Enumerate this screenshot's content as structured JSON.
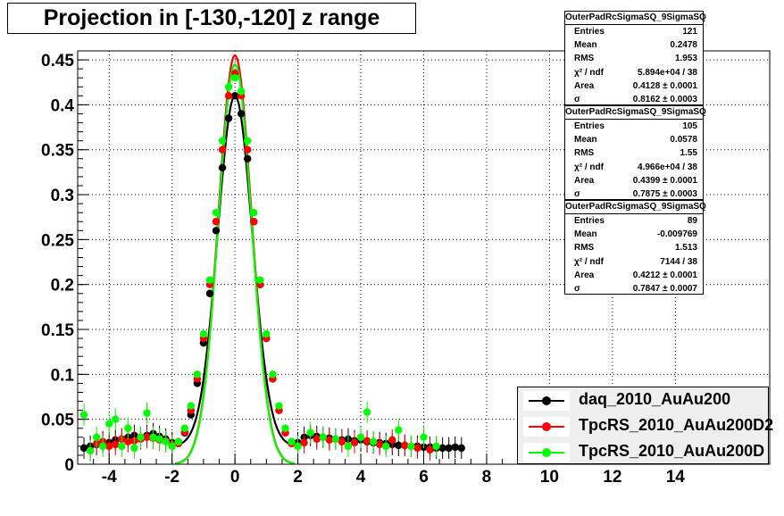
{
  "title": "Projection in [-130,-120] z range",
  "stat_boxes": [
    {
      "name": "OuterPadRcSigmaSQ_9SigmaSQ",
      "rows": [
        {
          "label": "Entries",
          "value": "121"
        },
        {
          "label": "Mean",
          "value": "0.2478"
        },
        {
          "label": "RMS",
          "value": "1.953"
        },
        {
          "label": "χ² / ndf",
          "value": "5.894e+04 / 38"
        },
        {
          "label": "Area",
          "value": "0.4128 ± 0.0001"
        },
        {
          "label": "σ",
          "value": "0.8162 ± 0.0003"
        }
      ]
    },
    {
      "name": "OuterPadRcSigmaSQ_9SigmaSQ",
      "rows": [
        {
          "label": "Entries",
          "value": "105"
        },
        {
          "label": "Mean",
          "value": "0.0578"
        },
        {
          "label": "RMS",
          "value": "1.55"
        },
        {
          "label": "χ² / ndf",
          "value": "4.966e+04 / 38"
        },
        {
          "label": "Area",
          "value": "0.4399 ± 0.0001"
        },
        {
          "label": "σ",
          "value": "0.7875 ± 0.0003"
        }
      ]
    },
    {
      "name": "OuterPadRcSigmaSQ_9SigmaSQ",
      "rows": [
        {
          "label": "Entries",
          "value": "89"
        },
        {
          "label": "Mean",
          "value": "-0.009769"
        },
        {
          "label": "RMS",
          "value": "1.513"
        },
        {
          "label": "χ² / ndf",
          "value": "7144 / 38"
        },
        {
          "label": "Area",
          "value": "0.4212 ± 0.0001"
        },
        {
          "label": "σ",
          "value": "0.7847 ± 0.0007"
        }
      ]
    }
  ],
  "legend": {
    "items": [
      {
        "label": "daq_2010_AuAu200",
        "color": "#000000"
      },
      {
        "label": "TpcRS_2010_AuAu200D2",
        "color": "#ff0000"
      },
      {
        "label": "TpcRS_2010_AuAu200D",
        "color": "#00ff00"
      }
    ]
  },
  "chart_data": {
    "type": "scatter",
    "title": "Projection in [-130,-120] z range",
    "xlim": [
      -5,
      17
    ],
    "ylim": [
      0,
      0.46
    ],
    "grid": true,
    "legend_position": "bottom-right",
    "x_ticks": [
      -4,
      -2,
      0,
      2,
      4,
      6,
      8,
      10,
      12,
      14
    ],
    "y_ticks": [
      0,
      0.05,
      0.1,
      0.15,
      0.2,
      0.25,
      0.3,
      0.35,
      0.4,
      0.45
    ],
    "y_tick_labels": [
      "0",
      "0.05",
      "0.1",
      "0.15",
      "0.2",
      "0.25",
      "0.3",
      "0.35",
      "0.4",
      "0.45"
    ],
    "series": [
      {
        "name": "daq_2010_AuAu200",
        "color": "#000000",
        "points": [
          [
            -4.8,
            0.018
          ],
          [
            -4.6,
            0.02
          ],
          [
            -4.4,
            0.022
          ],
          [
            -4.2,
            0.025
          ],
          [
            -4.0,
            0.024
          ],
          [
            -3.8,
            0.027
          ],
          [
            -3.6,
            0.028
          ],
          [
            -3.4,
            0.03
          ],
          [
            -3.2,
            0.032
          ],
          [
            -3.0,
            0.03
          ],
          [
            -2.8,
            0.032
          ],
          [
            -2.6,
            0.034
          ],
          [
            -2.4,
            0.031
          ],
          [
            -2.2,
            0.028
          ],
          [
            -2.0,
            0.024
          ],
          [
            -1.8,
            0.025
          ],
          [
            -1.6,
            0.035
          ],
          [
            -1.4,
            0.055
          ],
          [
            -1.2,
            0.09
          ],
          [
            -1.0,
            0.135
          ],
          [
            -0.8,
            0.19
          ],
          [
            -0.6,
            0.26
          ],
          [
            -0.4,
            0.33
          ],
          [
            -0.2,
            0.385
          ],
          [
            0.0,
            0.41
          ],
          [
            0.2,
            0.39
          ],
          [
            0.4,
            0.34
          ],
          [
            0.6,
            0.27
          ],
          [
            0.8,
            0.2
          ],
          [
            1.0,
            0.14
          ],
          [
            1.2,
            0.095
          ],
          [
            1.4,
            0.06
          ],
          [
            1.6,
            0.035
          ],
          [
            1.8,
            0.025
          ],
          [
            2.0,
            0.024
          ],
          [
            2.2,
            0.03
          ],
          [
            2.4,
            0.032
          ],
          [
            2.6,
            0.031
          ],
          [
            2.8,
            0.03
          ],
          [
            3.0,
            0.029
          ],
          [
            3.2,
            0.028
          ],
          [
            3.4,
            0.027
          ],
          [
            3.6,
            0.028
          ],
          [
            3.8,
            0.026
          ],
          [
            4.0,
            0.027
          ],
          [
            4.2,
            0.025
          ],
          [
            4.4,
            0.024
          ],
          [
            4.6,
            0.024
          ],
          [
            4.8,
            0.023
          ],
          [
            5.0,
            0.022
          ],
          [
            5.2,
            0.021
          ],
          [
            5.4,
            0.021
          ],
          [
            5.6,
            0.02
          ],
          [
            5.8,
            0.02
          ],
          [
            6.0,
            0.019
          ],
          [
            6.2,
            0.019
          ],
          [
            6.4,
            0.018
          ],
          [
            6.6,
            0.018
          ],
          [
            6.8,
            0.018
          ],
          [
            7.0,
            0.019
          ],
          [
            7.2,
            0.018
          ]
        ]
      },
      {
        "name": "TpcRS_2010_AuAu200D2",
        "color": "#ff0000",
        "points": [
          [
            -4.6,
            0.015
          ],
          [
            -4.4,
            0.023
          ],
          [
            -4.2,
            0.025
          ],
          [
            -4.0,
            0.02
          ],
          [
            -3.8,
            0.022
          ],
          [
            -3.6,
            0.028
          ],
          [
            -3.4,
            0.025
          ],
          [
            -3.2,
            0.026
          ],
          [
            -3.0,
            0.028
          ],
          [
            -2.8,
            0.03
          ],
          [
            -2.6,
            0.029
          ],
          [
            -2.4,
            0.027
          ],
          [
            -2.2,
            0.026
          ],
          [
            -2.0,
            0.022
          ],
          [
            -1.8,
            0.023
          ],
          [
            -1.6,
            0.036
          ],
          [
            -1.4,
            0.06
          ],
          [
            -1.2,
            0.095
          ],
          [
            -1.0,
            0.14
          ],
          [
            -0.8,
            0.2
          ],
          [
            -0.6,
            0.27
          ],
          [
            -0.4,
            0.35
          ],
          [
            -0.2,
            0.41
          ],
          [
            0.0,
            0.435
          ],
          [
            0.2,
            0.41
          ],
          [
            0.4,
            0.35
          ],
          [
            0.6,
            0.27
          ],
          [
            0.8,
            0.2
          ],
          [
            1.0,
            0.14
          ],
          [
            1.2,
            0.095
          ],
          [
            1.4,
            0.06
          ],
          [
            1.6,
            0.035
          ],
          [
            1.8,
            0.023
          ],
          [
            2.2,
            0.024
          ],
          [
            2.6,
            0.028
          ],
          [
            3.0,
            0.027
          ],
          [
            3.4,
            0.025
          ],
          [
            3.8,
            0.024
          ],
          [
            4.2,
            0.026
          ],
          [
            4.6,
            0.022
          ],
          [
            5.0,
            0.027
          ],
          [
            5.4,
            0.021
          ],
          [
            5.8,
            0.018
          ],
          [
            6.2,
            0.016
          ]
        ]
      },
      {
        "name": "TpcRS_2010_AuAu200D",
        "color": "#00ff00",
        "points": [
          [
            -4.8,
            0.055
          ],
          [
            -4.6,
            0.015
          ],
          [
            -4.4,
            0.03
          ],
          [
            -4.2,
            0.02
          ],
          [
            -4.0,
            0.045
          ],
          [
            -3.8,
            0.05
          ],
          [
            -3.6,
            0.02
          ],
          [
            -3.4,
            0.04
          ],
          [
            -3.2,
            0.018
          ],
          [
            -3.0,
            0.03
          ],
          [
            -2.8,
            0.057
          ],
          [
            -2.6,
            0.03
          ],
          [
            -2.4,
            0.028
          ],
          [
            -2.2,
            0.025
          ],
          [
            -2.0,
            0.02
          ],
          [
            -1.8,
            0.025
          ],
          [
            -1.6,
            0.04
          ],
          [
            -1.4,
            0.065
          ],
          [
            -1.2,
            0.1
          ],
          [
            -1.0,
            0.145
          ],
          [
            -0.8,
            0.205
          ],
          [
            -0.6,
            0.28
          ],
          [
            -0.4,
            0.36
          ],
          [
            -0.2,
            0.42
          ],
          [
            0.0,
            0.43
          ],
          [
            0.2,
            0.415
          ],
          [
            0.4,
            0.36
          ],
          [
            0.6,
            0.28
          ],
          [
            0.8,
            0.205
          ],
          [
            1.0,
            0.145
          ],
          [
            1.2,
            0.1
          ],
          [
            1.4,
            0.065
          ],
          [
            1.6,
            0.04
          ],
          [
            1.8,
            0.025
          ],
          [
            2.0,
            0.02
          ],
          [
            2.4,
            0.035
          ],
          [
            2.8,
            0.03
          ],
          [
            3.2,
            0.028
          ],
          [
            3.6,
            0.02
          ],
          [
            4.0,
            0.03
          ],
          [
            4.2,
            0.058
          ],
          [
            4.4,
            0.025
          ],
          [
            4.8,
            0.02
          ],
          [
            5.2,
            0.038
          ],
          [
            5.6,
            0.02
          ],
          [
            6.0,
            0.03
          ],
          [
            6.4,
            0.02
          ]
        ]
      }
    ],
    "fits": [
      {
        "series": "daq_2010_AuAu200",
        "peak": 0.41,
        "sigma": 0.816,
        "baseline": 0.02
      },
      {
        "series": "TpcRS_2010_AuAu200D2",
        "peak": 0.455,
        "sigma": 0.7875,
        "baseline": 0.0
      },
      {
        "series": "TpcRS_2010_AuAu200D",
        "peak": 0.445,
        "sigma": 0.7847,
        "baseline": 0.0
      }
    ]
  }
}
